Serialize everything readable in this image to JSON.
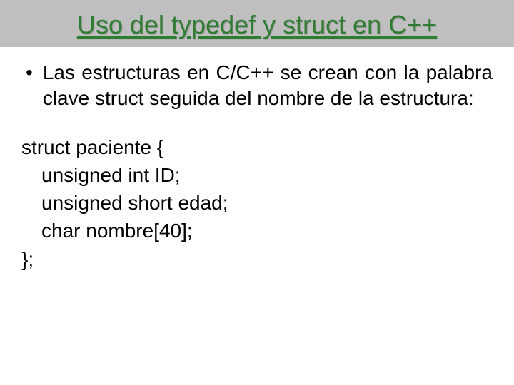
{
  "slide": {
    "title": "Uso del typedef y struct en C++",
    "bullet_text": "Las estructuras en C/C++ se crean con la palabra clave struct seguida del nombre de la estructura:",
    "code_lines": {
      "line1": "struct paciente {",
      "line2": "unsigned int ID;",
      "line3": "unsigned short edad;",
      "line4": "char nombre[40];",
      "line5": "};"
    },
    "colors": {
      "title_bg": "#bfbfbf",
      "title_color": "#2e7d32",
      "body_bg": "#ffffff",
      "text_color": "#000000"
    },
    "typography": {
      "title_fontsize": 36,
      "body_fontsize": 28,
      "font_family": "Arial"
    }
  }
}
